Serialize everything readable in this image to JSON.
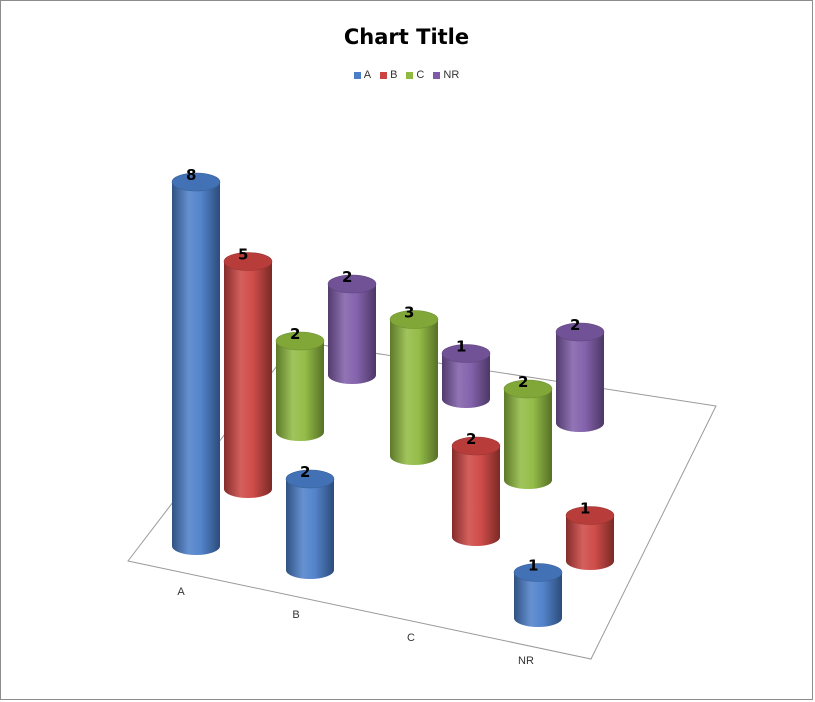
{
  "chart_data": {
    "type": "bar",
    "subtype": "3d-cylinder",
    "title": "Chart Title",
    "xlabel": "",
    "ylabel": "",
    "categories": [
      "A",
      "B",
      "C",
      "NR"
    ],
    "series": [
      {
        "name": "A",
        "color": "#4a7ec9",
        "values": [
          8,
          2,
          null,
          1
        ]
      },
      {
        "name": "B",
        "color": "#cc4440",
        "values": [
          5,
          null,
          2,
          1
        ]
      },
      {
        "name": "C",
        "color": "#8fba3f",
        "values": [
          2,
          3,
          2,
          null
        ]
      },
      {
        "name": "NR",
        "color": "#7e5ba8",
        "values": [
          2,
          1,
          2,
          null
        ]
      }
    ],
    "legend_position": "top",
    "grid": false
  }
}
